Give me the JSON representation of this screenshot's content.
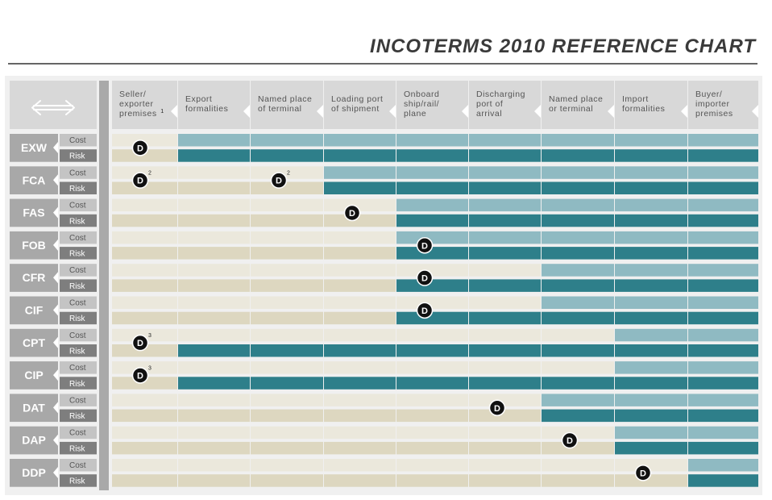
{
  "title": "INCOTERMS 2010 REFERENCE CHART",
  "chart_data": {
    "type": "table",
    "columns": [
      {
        "lines": [
          "Seller/",
          "exporter",
          "premises"
        ],
        "footnote": "1"
      },
      {
        "lines": [
          "Export",
          "formalities"
        ]
      },
      {
        "lines": [
          "Named place",
          "of terminal"
        ]
      },
      {
        "lines": [
          "Loading port",
          "of shipment"
        ]
      },
      {
        "lines": [
          "Onboard",
          "ship/rail/",
          "plane"
        ]
      },
      {
        "lines": [
          "Discharging",
          "port of",
          "arrival"
        ]
      },
      {
        "lines": [
          "Named place",
          "or terminal"
        ]
      },
      {
        "lines": [
          "Import",
          "formalities"
        ]
      },
      {
        "lines": [
          "Buyer/",
          "importer",
          "premises"
        ]
      }
    ],
    "row_labels": {
      "cost": "Cost",
      "risk": "Risk"
    },
    "marker_label": "D",
    "rows": [
      {
        "term": "EXW",
        "cost_from": 1,
        "risk_from": 1,
        "delivery": [
          {
            "col": 0,
            "footnote": ""
          }
        ]
      },
      {
        "term": "FCA",
        "cost_from": 3,
        "risk_from": 3,
        "delivery": [
          {
            "col": 0,
            "footnote": "2"
          },
          {
            "col": 2,
            "footnote": "2"
          }
        ]
      },
      {
        "term": "FAS",
        "cost_from": 4,
        "risk_from": 4,
        "delivery": [
          {
            "col": 3,
            "footnote": ""
          }
        ]
      },
      {
        "term": "FOB",
        "cost_from": 4,
        "risk_from": 4,
        "delivery": [
          {
            "col": 4,
            "footnote": ""
          }
        ]
      },
      {
        "term": "CFR",
        "cost_from": 6,
        "risk_from": 4,
        "delivery": [
          {
            "col": 4,
            "footnote": ""
          }
        ]
      },
      {
        "term": "CIF",
        "cost_from": 6,
        "risk_from": 4,
        "delivery": [
          {
            "col": 4,
            "footnote": ""
          }
        ]
      },
      {
        "term": "CPT",
        "cost_from": 7,
        "risk_from": 1,
        "delivery": [
          {
            "col": 0,
            "footnote": "3"
          }
        ]
      },
      {
        "term": "CIP",
        "cost_from": 7,
        "risk_from": 1,
        "delivery": [
          {
            "col": 0,
            "footnote": "3"
          }
        ]
      },
      {
        "term": "DAT",
        "cost_from": 6,
        "risk_from": 6,
        "delivery": [
          {
            "col": 5,
            "footnote": ""
          }
        ]
      },
      {
        "term": "DAP",
        "cost_from": 7,
        "risk_from": 7,
        "delivery": [
          {
            "col": 6,
            "footnote": ""
          }
        ]
      },
      {
        "term": "DDP",
        "cost_from": 8,
        "risk_from": 8,
        "delivery": [
          {
            "col": 7,
            "footnote": ""
          }
        ]
      }
    ],
    "colors": {
      "seller_cost": "#ebe8dc",
      "seller_risk": "#ddd7c0",
      "buyer_cost": "#8fbac2",
      "buyer_risk": "#2e7f8a",
      "header_bg": "#d8d8d8",
      "term_bg": "#a8a8a8",
      "cost_label_bg": "#c4c4c4",
      "risk_label_bg": "#7e7e7e",
      "divider": "#a9a9a9",
      "marker": "#111111"
    }
  }
}
